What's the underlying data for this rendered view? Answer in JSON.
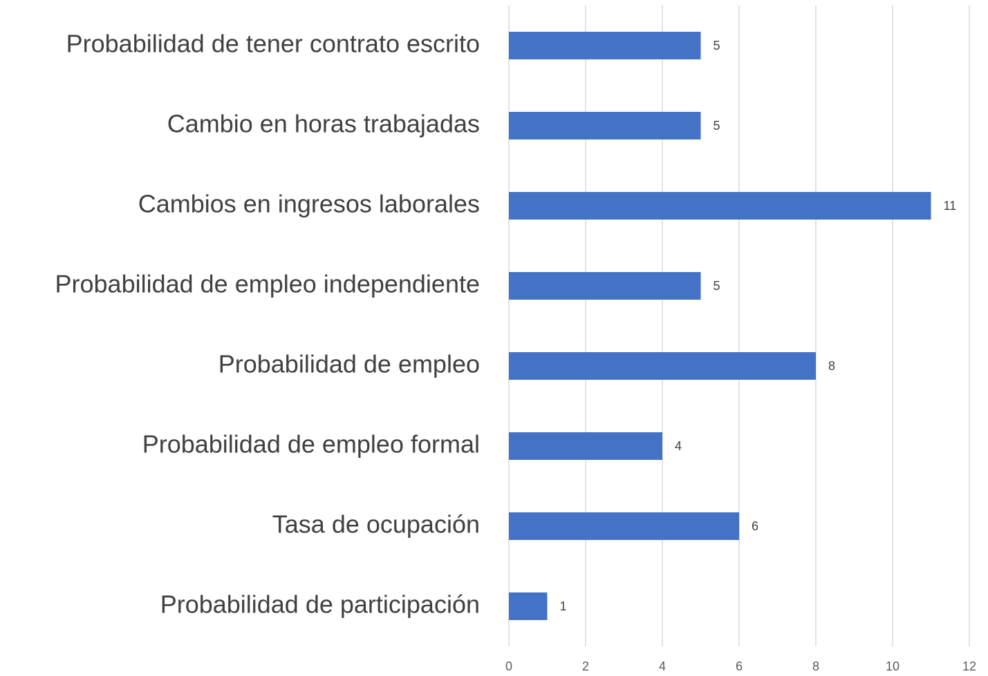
{
  "chart_data": {
    "type": "bar",
    "orientation": "horizontal",
    "categories": [
      "Probabilidad de tener contrato escrito",
      "Cambio en horas trabajadas",
      "Cambios en ingresos laborales",
      "Probabilidad de empleo independiente",
      "Probabilidad de empleo",
      "Probabilidad de empleo formal",
      "Tasa de ocupación",
      "Probabilidad de participación"
    ],
    "values": [
      5,
      5,
      11,
      5,
      8,
      4,
      6,
      1
    ],
    "color": "#4472c4",
    "xlim": [
      0,
      12
    ],
    "xticks": [
      0,
      2,
      4,
      6,
      8,
      10,
      12
    ],
    "grid": true
  }
}
